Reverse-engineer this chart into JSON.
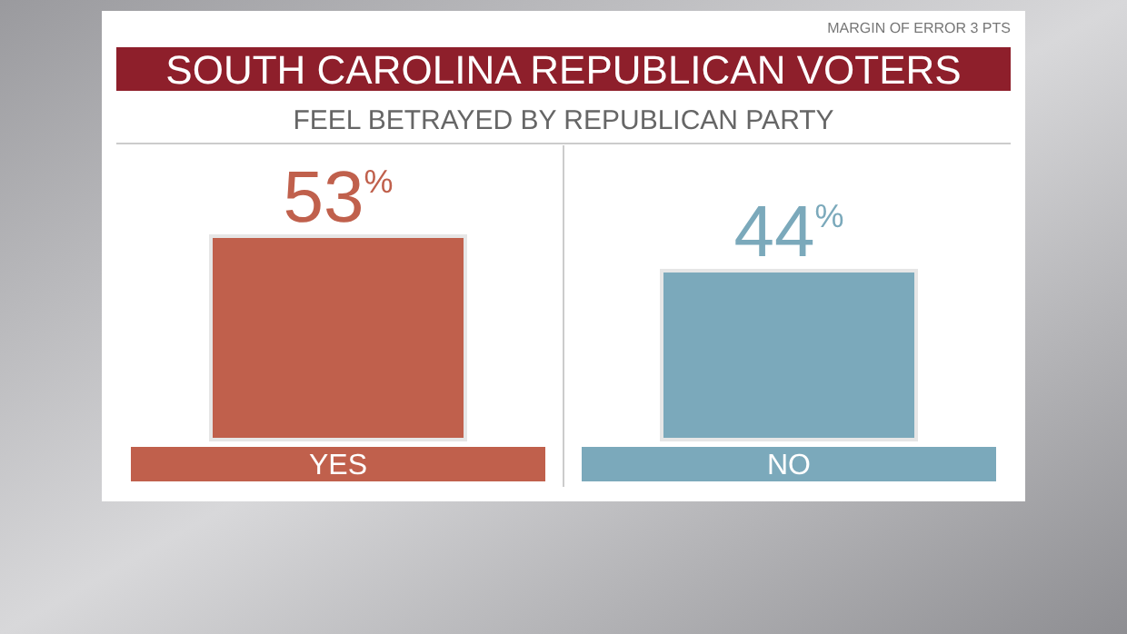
{
  "chart_data": {
    "type": "bar",
    "title": "SOUTH CAROLINA REPUBLICAN VOTERS",
    "subtitle": "FEEL BETRAYED BY REPUBLICAN PARTY",
    "annotations": [
      "MARGIN OF ERROR 3 PTS"
    ],
    "categories": [
      "YES",
      "NO"
    ],
    "values": [
      53,
      44
    ],
    "colors": [
      "#c0604c",
      "#7ba9bb"
    ],
    "value_labels": [
      "53$^{%}$",
      "44$^{%}$"
    ]
  }
}
